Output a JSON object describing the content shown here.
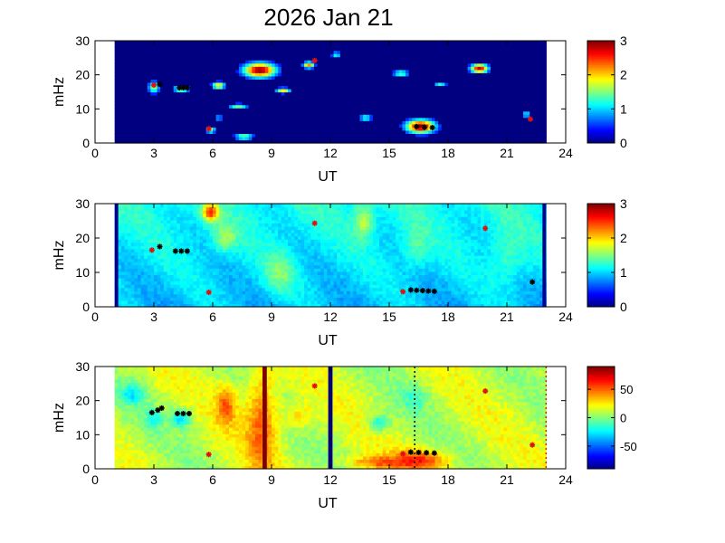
{
  "figure": {
    "title": "2026 Jan 21"
  },
  "chart_data": [
    {
      "type": "heatmap",
      "xlabel": "UT",
      "ylabel": "mHz",
      "xlim": [
        0,
        24
      ],
      "ylim": [
        0,
        30
      ],
      "x_ticks": [
        "0",
        "3",
        "6",
        "9",
        "12",
        "15",
        "18",
        "21",
        "24"
      ],
      "y_ticks": [
        "0",
        "10",
        "20",
        "30"
      ],
      "colorbar": {
        "range": [
          0,
          3
        ],
        "ticks": [
          "0",
          "1",
          "2",
          "3"
        ],
        "colormap": "jet"
      },
      "data_span": [
        1,
        23
      ],
      "hotspots": [
        {
          "x": 8.4,
          "y": 21.5,
          "v": 3.0,
          "rx": 1.0,
          "ry": 2.6
        },
        {
          "x": 16.6,
          "y": 5.0,
          "v": 3.0,
          "rx": 0.9,
          "ry": 2.4
        },
        {
          "x": 19.6,
          "y": 22.0,
          "v": 2.8,
          "rx": 0.55,
          "ry": 1.6
        },
        {
          "x": 10.9,
          "y": 23.0,
          "v": 2.2,
          "rx": 0.35,
          "ry": 1.2
        },
        {
          "x": 6.3,
          "y": 17.0,
          "v": 2.0,
          "rx": 0.4,
          "ry": 1.3
        },
        {
          "x": 4.4,
          "y": 16.0,
          "v": 1.8,
          "rx": 0.5,
          "ry": 1.1
        },
        {
          "x": 3.0,
          "y": 16.5,
          "v": 1.6,
          "rx": 0.35,
          "ry": 2.2
        },
        {
          "x": 9.6,
          "y": 15.5,
          "v": 1.9,
          "rx": 0.45,
          "ry": 1.0
        },
        {
          "x": 7.3,
          "y": 11.0,
          "v": 1.6,
          "rx": 0.6,
          "ry": 0.8
        },
        {
          "x": 13.8,
          "y": 7.5,
          "v": 1.7,
          "rx": 0.4,
          "ry": 0.8
        },
        {
          "x": 15.6,
          "y": 20.5,
          "v": 1.4,
          "rx": 0.5,
          "ry": 1.3
        },
        {
          "x": 5.9,
          "y": 4.0,
          "v": 1.6,
          "rx": 0.3,
          "ry": 1.2
        },
        {
          "x": 7.6,
          "y": 2.0,
          "v": 1.5,
          "rx": 0.6,
          "ry": 1.2
        },
        {
          "x": 22.0,
          "y": 8.5,
          "v": 1.3,
          "rx": 0.3,
          "ry": 1.0
        },
        {
          "x": 12.3,
          "y": 26.0,
          "v": 1.2,
          "rx": 0.3,
          "ry": 1.2
        },
        {
          "x": 17.6,
          "y": 17.5,
          "v": 1.3,
          "rx": 0.4,
          "ry": 0.8
        },
        {
          "x": 6.3,
          "y": 7.5,
          "v": 1.2,
          "rx": 0.3,
          "ry": 0.8
        }
      ],
      "red_markers": [
        {
          "x": 3.0,
          "y": 17.0
        },
        {
          "x": 5.8,
          "y": 4.2
        },
        {
          "x": 11.2,
          "y": 24.2
        },
        {
          "x": 22.2,
          "y": 7.0
        }
      ],
      "black_markers": [
        {
          "x": 3.3,
          "y": 17.2
        },
        {
          "x": 4.3,
          "y": 16.2
        },
        {
          "x": 4.5,
          "y": 16.2
        },
        {
          "x": 4.7,
          "y": 16.2
        },
        {
          "x": 16.4,
          "y": 4.8
        },
        {
          "x": 16.8,
          "y": 4.6
        },
        {
          "x": 17.2,
          "y": 4.5
        }
      ]
    },
    {
      "type": "heatmap",
      "xlabel": "UT",
      "ylabel": "mHz",
      "xlim": [
        0,
        24
      ],
      "ylim": [
        0,
        30
      ],
      "x_ticks": [
        "0",
        "3",
        "6",
        "9",
        "12",
        "15",
        "18",
        "21",
        "24"
      ],
      "y_ticks": [
        "0",
        "10",
        "20",
        "30"
      ],
      "colorbar": {
        "range": [
          0,
          3
        ],
        "ticks": [
          "0",
          "1",
          "2",
          "3"
        ],
        "colormap": "jet"
      },
      "data_span": [
        1,
        23
      ],
      "hotspots": [
        {
          "x": 5.9,
          "y": 27.5,
          "v": 2.3,
          "rx": 0.4,
          "ry": 2.5
        },
        {
          "x": 6.6,
          "y": 20.0,
          "v": 1.5,
          "rx": 0.6,
          "ry": 4.0
        },
        {
          "x": 13.7,
          "y": 25.0,
          "v": 1.6,
          "rx": 0.5,
          "ry": 5.0
        },
        {
          "x": 9.4,
          "y": 10.0,
          "v": 1.4,
          "rx": 0.8,
          "ry": 6.0
        },
        {
          "x": 16.3,
          "y": 17.0,
          "v": 1.3,
          "rx": 0.7,
          "ry": 6.0
        },
        {
          "x": 21.0,
          "y": 14.0,
          "v": 1.3,
          "rx": 0.9,
          "ry": 8.0
        }
      ],
      "red_markers": [
        {
          "x": 2.9,
          "y": 16.5
        },
        {
          "x": 5.8,
          "y": 4.2
        },
        {
          "x": 11.2,
          "y": 24.3
        },
        {
          "x": 15.7,
          "y": 4.4
        },
        {
          "x": 19.9,
          "y": 22.8
        }
      ],
      "black_markers": [
        {
          "x": 3.3,
          "y": 17.5
        },
        {
          "x": 4.1,
          "y": 16.2
        },
        {
          "x": 4.4,
          "y": 16.2
        },
        {
          "x": 4.7,
          "y": 16.2
        },
        {
          "x": 16.1,
          "y": 4.9
        },
        {
          "x": 16.4,
          "y": 4.8
        },
        {
          "x": 16.7,
          "y": 4.7
        },
        {
          "x": 17.0,
          "y": 4.6
        },
        {
          "x": 17.3,
          "y": 4.5
        },
        {
          "x": 22.3,
          "y": 7.2
        }
      ]
    },
    {
      "type": "heatmap",
      "xlabel": "UT",
      "ylabel": "mHz",
      "xlim": [
        0,
        24
      ],
      "ylim": [
        0,
        30
      ],
      "x_ticks": [
        "0",
        "3",
        "6",
        "9",
        "12",
        "15",
        "18",
        "21",
        "24"
      ],
      "y_ticks": [
        "0",
        "10",
        "20",
        "30"
      ],
      "colorbar": {
        "range": [
          -90,
          90
        ],
        "ticks": [
          "50",
          "0",
          "-50"
        ],
        "tick_values": [
          50,
          0,
          -50
        ],
        "colormap": "jet"
      },
      "data_span": [
        1,
        23
      ],
      "hotspots": [
        {
          "x": 8.5,
          "y": 15.0,
          "v": 40,
          "rx": 0.8,
          "ry": 15.0
        },
        {
          "x": 6.7,
          "y": 19.0,
          "v": 35,
          "rx": 0.5,
          "ry": 6.0
        },
        {
          "x": 16.6,
          "y": 2.5,
          "v": 45,
          "rx": 1.4,
          "ry": 3.0
        },
        {
          "x": 14.3,
          "y": 2.0,
          "v": 30,
          "rx": 1.4,
          "ry": 2.0
        },
        {
          "x": 10.3,
          "y": 15.5,
          "v": 20,
          "rx": 0.8,
          "ry": 4.0
        },
        {
          "x": 4.4,
          "y": 15.0,
          "v": -40,
          "rx": 0.5,
          "ry": 2.5
        },
        {
          "x": 1.9,
          "y": 22.0,
          "v": -30,
          "rx": 0.6,
          "ry": 3.0
        },
        {
          "x": 3.0,
          "y": 15.0,
          "v": -25,
          "rx": 0.4,
          "ry": 3.0
        },
        {
          "x": 14.5,
          "y": 13.5,
          "v": -35,
          "rx": 0.5,
          "ry": 2.5
        },
        {
          "x": 16.2,
          "y": 21.0,
          "v": -15,
          "rx": 0.7,
          "ry": 4.0
        }
      ],
      "vertical_bands": [
        {
          "x": 8.65,
          "width": 0.22,
          "v": 90
        },
        {
          "x": 12.0,
          "width": 0.22,
          "v": -90
        }
      ],
      "dashed_lines": [
        {
          "x": 16.3,
          "color": "#000000"
        },
        {
          "x": 23.0,
          "color": "#cc2222"
        }
      ],
      "red_markers": [
        {
          "x": 5.8,
          "y": 4.2
        },
        {
          "x": 11.2,
          "y": 24.3
        },
        {
          "x": 15.7,
          "y": 4.4
        },
        {
          "x": 19.9,
          "y": 22.8
        },
        {
          "x": 22.3,
          "y": 7.0
        }
      ],
      "black_markers": [
        {
          "x": 2.9,
          "y": 16.5
        },
        {
          "x": 3.2,
          "y": 17.2
        },
        {
          "x": 3.4,
          "y": 17.8
        },
        {
          "x": 4.2,
          "y": 16.2
        },
        {
          "x": 4.5,
          "y": 16.2
        },
        {
          "x": 4.8,
          "y": 16.2
        },
        {
          "x": 16.1,
          "y": 4.9
        },
        {
          "x": 16.5,
          "y": 4.8
        },
        {
          "x": 16.9,
          "y": 4.7
        },
        {
          "x": 17.3,
          "y": 4.6
        }
      ]
    }
  ]
}
